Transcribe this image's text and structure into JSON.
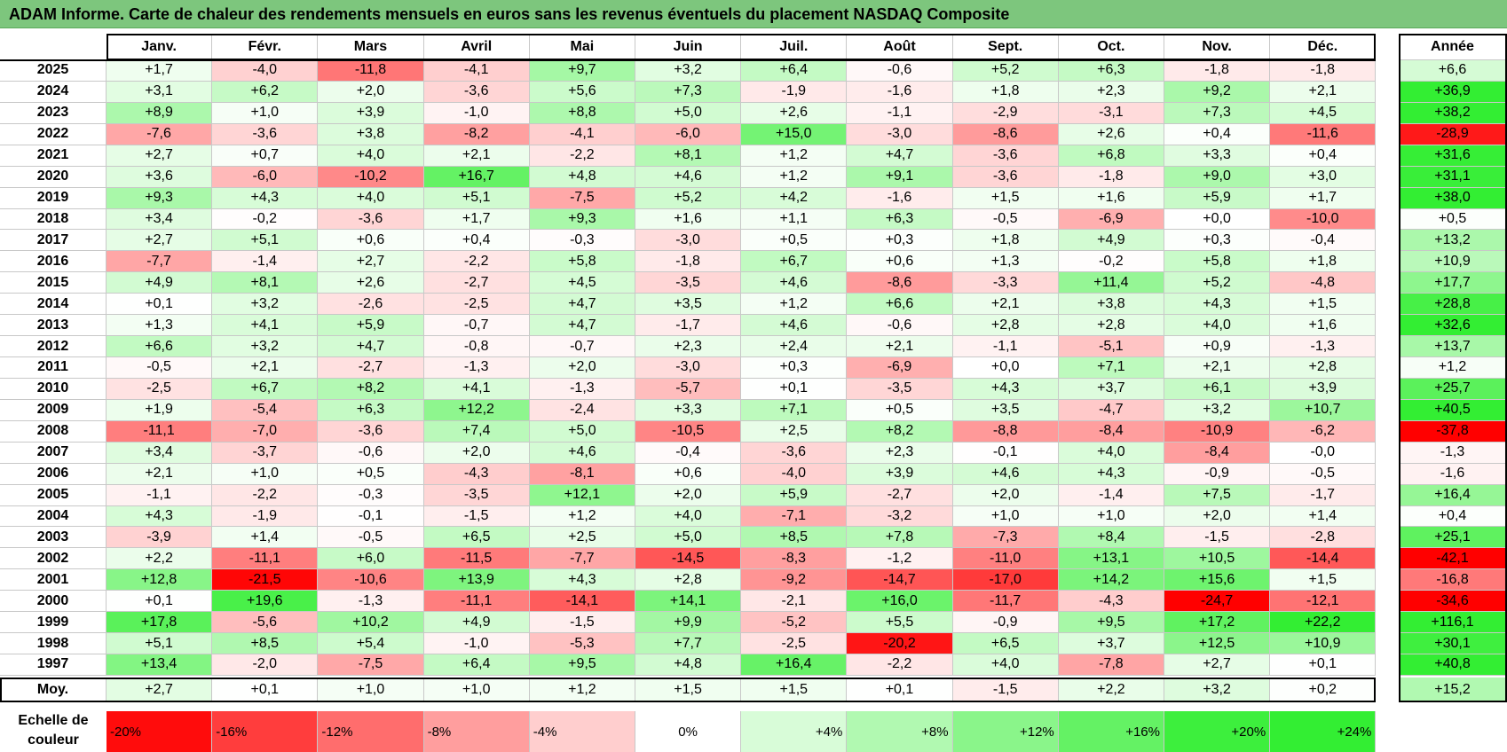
{
  "chart_data": {
    "type": "heatmap",
    "title": "ADAM Informe. Carte de chaleur des rendements mensuels en euros sans les revenus éventuels du placement NASDAQ Composite",
    "columns": [
      "Janv.",
      "Févr.",
      "Mars",
      "Avril",
      "Mai",
      "Juin",
      "Juil.",
      "Août",
      "Sept.",
      "Oct.",
      "Nov.",
      "Déc."
    ],
    "year_column": "Année",
    "rows": [
      {
        "year": "2025",
        "values": [
          "+1,7",
          "-4,0",
          "-11,8",
          "-4,1",
          "+9,7",
          "+3,2",
          "+6,4",
          "-0,6",
          "+5,2",
          "+6,3",
          "-1,8",
          "-1,8"
        ],
        "annual": "+6,6"
      },
      {
        "year": "2024",
        "values": [
          "+3,1",
          "+6,2",
          "+2,0",
          "-3,6",
          "+5,6",
          "+7,3",
          "-1,9",
          "-1,6",
          "+1,8",
          "+2,3",
          "+9,2",
          "+2,1"
        ],
        "annual": "+36,9"
      },
      {
        "year": "2023",
        "values": [
          "+8,9",
          "+1,0",
          "+3,9",
          "-1,0",
          "+8,8",
          "+5,0",
          "+2,6",
          "-1,1",
          "-2,9",
          "-3,1",
          "+7,3",
          "+4,5"
        ],
        "annual": "+38,2"
      },
      {
        "year": "2022",
        "values": [
          "-7,6",
          "-3,6",
          "+3,8",
          "-8,2",
          "-4,1",
          "-6,0",
          "+15,0",
          "-3,0",
          "-8,6",
          "+2,6",
          "+0,4",
          "-11,6"
        ],
        "annual": "-28,9"
      },
      {
        "year": "2021",
        "values": [
          "+2,7",
          "+0,7",
          "+4,0",
          "+2,1",
          "-2,2",
          "+8,1",
          "+1,2",
          "+4,7",
          "-3,6",
          "+6,8",
          "+3,3",
          "+0,4"
        ],
        "annual": "+31,6"
      },
      {
        "year": "2020",
        "values": [
          "+3,6",
          "-6,0",
          "-10,2",
          "+16,7",
          "+4,8",
          "+4,6",
          "+1,2",
          "+9,1",
          "-3,6",
          "-1,8",
          "+9,0",
          "+3,0"
        ],
        "annual": "+31,1"
      },
      {
        "year": "2019",
        "values": [
          "+9,3",
          "+4,3",
          "+4,0",
          "+5,1",
          "-7,5",
          "+5,2",
          "+4,2",
          "-1,6",
          "+1,5",
          "+1,6",
          "+5,9",
          "+1,7"
        ],
        "annual": "+38,0"
      },
      {
        "year": "2018",
        "values": [
          "+3,4",
          "-0,2",
          "-3,6",
          "+1,7",
          "+9,3",
          "+1,6",
          "+1,1",
          "+6,3",
          "-0,5",
          "-6,9",
          "+0,0",
          "-10,0"
        ],
        "annual": "+0,5"
      },
      {
        "year": "2017",
        "values": [
          "+2,7",
          "+5,1",
          "+0,6",
          "+0,4",
          "-0,3",
          "-3,0",
          "+0,5",
          "+0,3",
          "+1,8",
          "+4,9",
          "+0,3",
          "-0,4"
        ],
        "annual": "+13,2"
      },
      {
        "year": "2016",
        "values": [
          "-7,7",
          "-1,4",
          "+2,7",
          "-2,2",
          "+5,8",
          "-1,8",
          "+6,7",
          "+0,6",
          "+1,3",
          "-0,2",
          "+5,8",
          "+1,8"
        ],
        "annual": "+10,9"
      },
      {
        "year": "2015",
        "values": [
          "+4,9",
          "+8,1",
          "+2,6",
          "-2,7",
          "+4,5",
          "-3,5",
          "+4,6",
          "-8,6",
          "-3,3",
          "+11,4",
          "+5,2",
          "-4,8"
        ],
        "annual": "+17,7"
      },
      {
        "year": "2014",
        "values": [
          "+0,1",
          "+3,2",
          "-2,6",
          "-2,5",
          "+4,7",
          "+3,5",
          "+1,2",
          "+6,6",
          "+2,1",
          "+3,8",
          "+4,3",
          "+1,5"
        ],
        "annual": "+28,8"
      },
      {
        "year": "2013",
        "values": [
          "+1,3",
          "+4,1",
          "+5,9",
          "-0,7",
          "+4,7",
          "-1,7",
          "+4,6",
          "-0,6",
          "+2,8",
          "+2,8",
          "+4,0",
          "+1,6"
        ],
        "annual": "+32,6"
      },
      {
        "year": "2012",
        "values": [
          "+6,6",
          "+3,2",
          "+4,7",
          "-0,8",
          "-0,7",
          "+2,3",
          "+2,4",
          "+2,1",
          "-1,1",
          "-5,1",
          "+0,9",
          "-1,3"
        ],
        "annual": "+13,7"
      },
      {
        "year": "2011",
        "values": [
          "-0,5",
          "+2,1",
          "-2,7",
          "-1,3",
          "+2,0",
          "-3,0",
          "+0,3",
          "-6,9",
          "+0,0",
          "+7,1",
          "+2,1",
          "+2,8"
        ],
        "annual": "+1,2"
      },
      {
        "year": "2010",
        "values": [
          "-2,5",
          "+6,7",
          "+8,2",
          "+4,1",
          "-1,3",
          "-5,7",
          "+0,1",
          "-3,5",
          "+4,3",
          "+3,7",
          "+6,1",
          "+3,9"
        ],
        "annual": "+25,7"
      },
      {
        "year": "2009",
        "values": [
          "+1,9",
          "-5,4",
          "+6,3",
          "+12,2",
          "-2,4",
          "+3,3",
          "+7,1",
          "+0,5",
          "+3,5",
          "-4,7",
          "+3,2",
          "+10,7"
        ],
        "annual": "+40,5"
      },
      {
        "year": "2008",
        "values": [
          "-11,1",
          "-7,0",
          "-3,6",
          "+7,4",
          "+5,0",
          "-10,5",
          "+2,5",
          "+8,2",
          "-8,8",
          "-8,4",
          "-10,9",
          "-6,2"
        ],
        "annual": "-37,8"
      },
      {
        "year": "2007",
        "values": [
          "+3,4",
          "-3,7",
          "-0,6",
          "+2,0",
          "+4,6",
          "-0,4",
          "-3,6",
          "+2,3",
          "-0,1",
          "+4,0",
          "-8,4",
          "-0,0"
        ],
        "annual": "-1,3"
      },
      {
        "year": "2006",
        "values": [
          "+2,1",
          "+1,0",
          "+0,5",
          "-4,3",
          "-8,1",
          "+0,6",
          "-4,0",
          "+3,9",
          "+4,6",
          "+4,3",
          "-0,9",
          "-0,5"
        ],
        "annual": "-1,6"
      },
      {
        "year": "2005",
        "values": [
          "-1,1",
          "-2,2",
          "-0,3",
          "-3,5",
          "+12,1",
          "+2,0",
          "+5,9",
          "-2,7",
          "+2,0",
          "-1,4",
          "+7,5",
          "-1,7"
        ],
        "annual": "+16,4"
      },
      {
        "year": "2004",
        "values": [
          "+4,3",
          "-1,9",
          "-0,1",
          "-1,5",
          "+1,2",
          "+4,0",
          "-7,1",
          "-3,2",
          "+1,0",
          "+1,0",
          "+2,0",
          "+1,4"
        ],
        "annual": "+0,4"
      },
      {
        "year": "2003",
        "values": [
          "-3,9",
          "+1,4",
          "-0,5",
          "+6,5",
          "+2,5",
          "+5,0",
          "+8,5",
          "+7,8",
          "-7,3",
          "+8,4",
          "-1,5",
          "-2,8"
        ],
        "annual": "+25,1"
      },
      {
        "year": "2002",
        "values": [
          "+2,2",
          "-11,1",
          "+6,0",
          "-11,5",
          "-7,7",
          "-14,5",
          "-8,3",
          "-1,2",
          "-11,0",
          "+13,1",
          "+10,5",
          "-14,4"
        ],
        "annual": "-42,1"
      },
      {
        "year": "2001",
        "values": [
          "+12,8",
          "-21,5",
          "-10,6",
          "+13,9",
          "+4,3",
          "+2,8",
          "-9,2",
          "-14,7",
          "-17,0",
          "+14,2",
          "+15,6",
          "+1,5"
        ],
        "annual": "-16,8"
      },
      {
        "year": "2000",
        "values": [
          "+0,1",
          "+19,6",
          "-1,3",
          "-11,1",
          "-14,1",
          "+14,1",
          "-2,1",
          "+16,0",
          "-11,7",
          "-4,3",
          "-24,7",
          "-12,1"
        ],
        "annual": "-34,6"
      },
      {
        "year": "1999",
        "values": [
          "+17,8",
          "-5,6",
          "+10,2",
          "+4,9",
          "-1,5",
          "+9,9",
          "-5,2",
          "+5,5",
          "-0,9",
          "+9,5",
          "+17,2",
          "+22,2"
        ],
        "annual": "+116,1"
      },
      {
        "year": "1998",
        "values": [
          "+5,1",
          "+8,5",
          "+5,4",
          "-1,0",
          "-5,3",
          "+7,7",
          "-2,5",
          "-20,2",
          "+6,5",
          "+3,7",
          "+12,5",
          "+10,9"
        ],
        "annual": "+30,1"
      },
      {
        "year": "1997",
        "values": [
          "+13,4",
          "-2,0",
          "-7,5",
          "+6,4",
          "+9,5",
          "+4,8",
          "+16,4",
          "-2,2",
          "+4,0",
          "-7,8",
          "+2,7",
          "+0,1"
        ],
        "annual": "+40,8"
      }
    ],
    "average": {
      "label": "Moy.",
      "values": [
        "+2,7",
        "+0,1",
        "+1,0",
        "+1,0",
        "+1,2",
        "+1,5",
        "+1,5",
        "+0,1",
        "-1,5",
        "+2,2",
        "+3,2",
        "+0,2"
      ],
      "annual": "+15,2"
    },
    "scale": {
      "label_line1": "Echelle de",
      "label_line2": "couleur",
      "steps": [
        "-20%",
        "-16%",
        "-12%",
        "-8%",
        "-4%",
        "0%",
        "+4%",
        "+8%",
        "+12%",
        "+16%",
        "+20%",
        "+24%"
      ]
    },
    "colors": {
      "negative_max": "#ff0000",
      "neutral": "#ffffff",
      "positive_max": "#33ee33",
      "title_bg": "#7dc67d"
    }
  }
}
